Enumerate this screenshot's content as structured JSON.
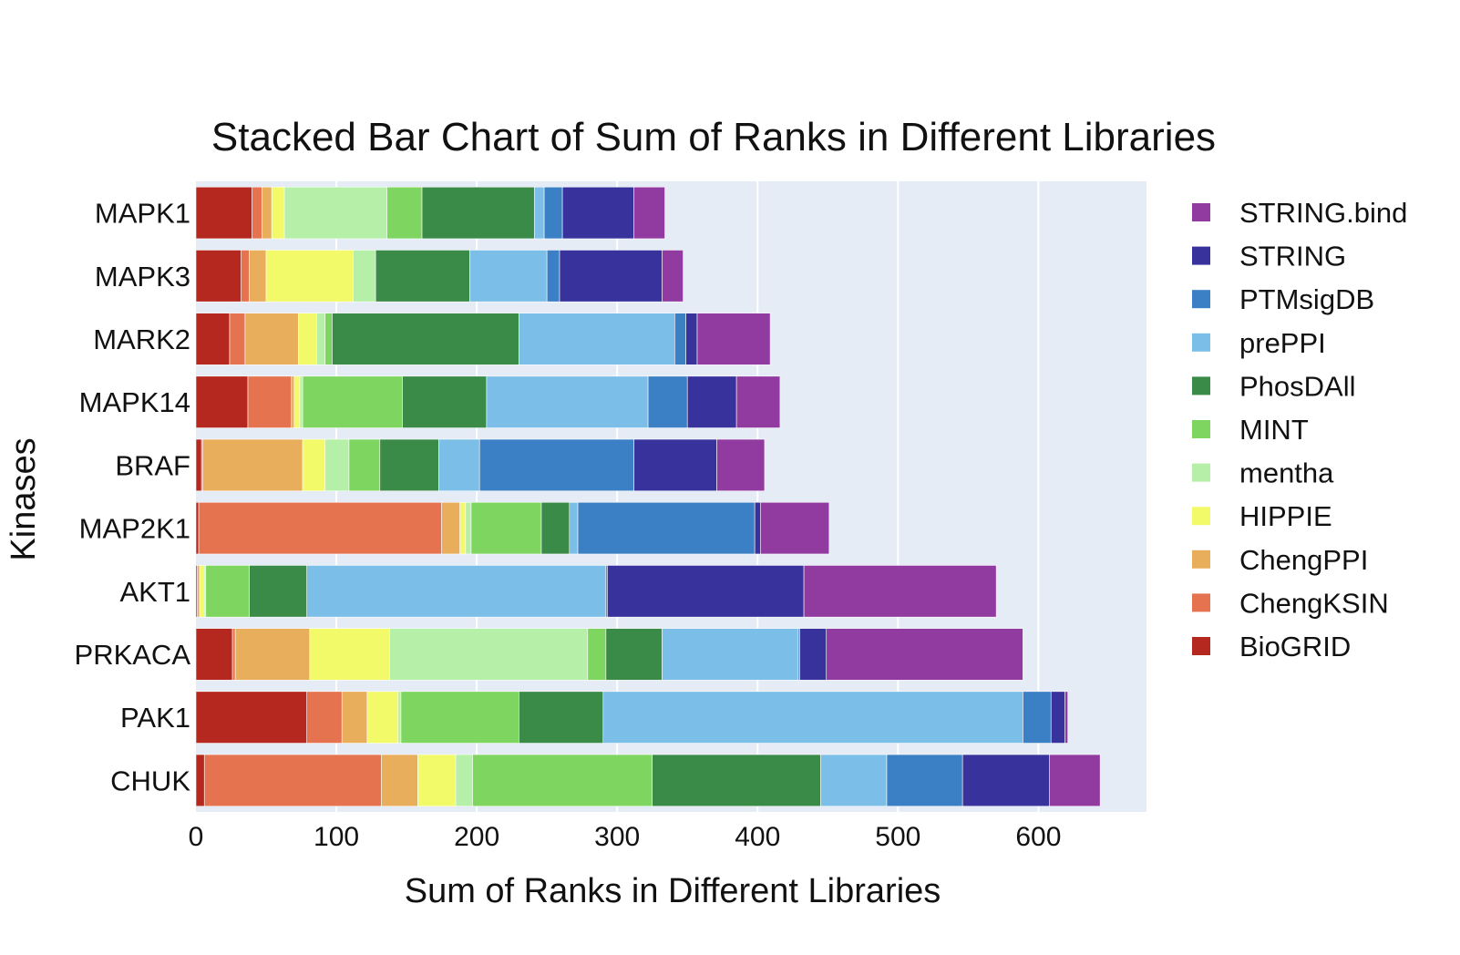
{
  "chart_data": {
    "type": "bar",
    "orientation": "horizontal",
    "stacked": true,
    "title": "Stacked Bar Chart of Sum of Ranks in Different Libraries",
    "xlabel": "Sum of Ranks in Different Libraries",
    "ylabel": "Kinases",
    "xlim": [
      0,
      677
    ],
    "x_ticks": [
      0,
      100,
      200,
      300,
      400,
      500,
      600
    ],
    "grid": true,
    "legend_position": "right",
    "categories": [
      "MAPK1",
      "MAPK3",
      "MARK2",
      "MAPK14",
      "BRAF",
      "MAP2K1",
      "AKT1",
      "PRKACA",
      "PAK1",
      "CHUK"
    ],
    "series": [
      {
        "name": "BioGRID",
        "color": "#b5281f",
        "values": [
          40,
          32,
          24,
          37,
          4,
          2,
          1,
          26,
          79,
          6
        ]
      },
      {
        "name": "ChengKSIN",
        "color": "#e6734f",
        "values": [
          7,
          6,
          11,
          31,
          1,
          173,
          1,
          2,
          25,
          126
        ]
      },
      {
        "name": "ChengPPI",
        "color": "#e9ae5b",
        "values": [
          7,
          12,
          38,
          2,
          71,
          13,
          1,
          53,
          18,
          26
        ]
      },
      {
        "name": "HIPPIE",
        "color": "#f2fa6a",
        "values": [
          9,
          62,
          13,
          4,
          16,
          4,
          3,
          57,
          22,
          27
        ]
      },
      {
        "name": "mentha",
        "color": "#b6f0a8",
        "values": [
          73,
          16,
          6,
          2,
          17,
          4,
          1,
          141,
          2,
          12
        ]
      },
      {
        "name": "MINT",
        "color": "#7ed660",
        "values": [
          25,
          0,
          5,
          71,
          22,
          50,
          31,
          13,
          84,
          128
        ]
      },
      {
        "name": "PhosDAll",
        "color": "#3a8a48",
        "values": [
          80,
          67,
          133,
          60,
          42,
          20,
          41,
          40,
          60,
          120
        ]
      },
      {
        "name": "prePPI",
        "color": "#7bbee8",
        "values": [
          7,
          55,
          111,
          115,
          29,
          6,
          213,
          97,
          299,
          47
        ]
      },
      {
        "name": "PTMsigDB",
        "color": "#3b7fc4",
        "values": [
          13,
          9,
          8,
          28,
          110,
          126,
          1,
          1,
          20,
          54
        ]
      },
      {
        "name": "STRING",
        "color": "#38339c",
        "values": [
          51,
          73,
          8,
          35,
          59,
          4,
          140,
          19,
          10,
          62
        ]
      },
      {
        "name": "STRING.bind",
        "color": "#913ba1",
        "values": [
          22,
          15,
          52,
          31,
          34,
          49,
          137,
          140,
          2,
          36
        ]
      }
    ]
  }
}
